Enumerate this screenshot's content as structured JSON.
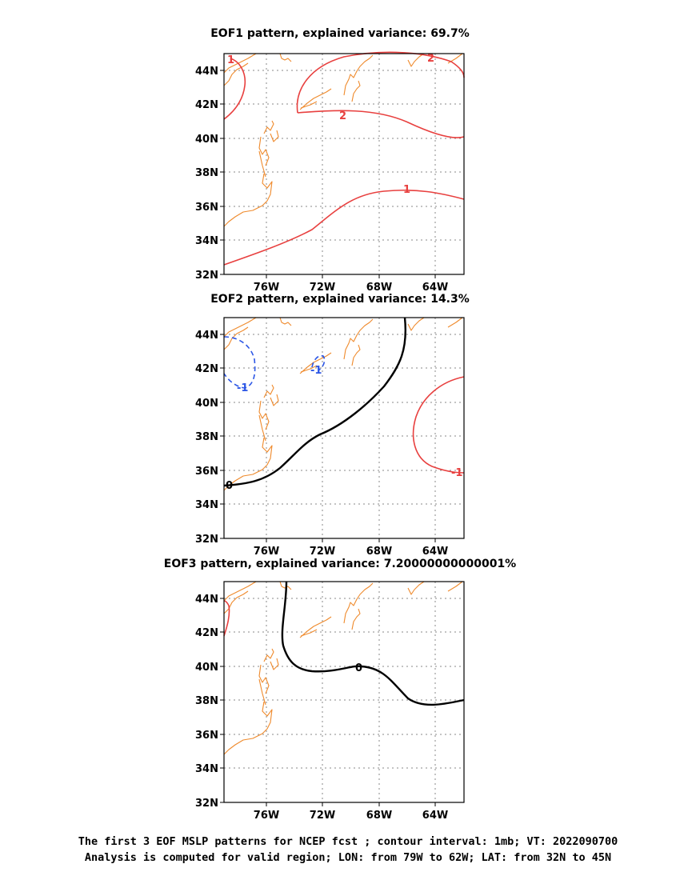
{
  "panels": [
    {
      "title": "EOF1 pattern, explained variance: 69.7%"
    },
    {
      "title": "EOF2 pattern, explained variance: 14.3%"
    },
    {
      "title": "EOF3 pattern, explained variance: 7.20000000000001%"
    }
  ],
  "axes": {
    "lat_ticks": [
      "44N",
      "42N",
      "40N",
      "38N",
      "36N",
      "34N",
      "32N"
    ],
    "lon_ticks": [
      "76W",
      "72W",
      "68W",
      "64W"
    ]
  },
  "contour_labels": {
    "eof1": [
      "1",
      "2",
      "2",
      "1"
    ],
    "eof2": [
      "0",
      "-1",
      "-1",
      "-1"
    ],
    "eof3": [
      "0"
    ]
  },
  "colors": {
    "positive_contour": "#e8403f",
    "negative_contour": "#2d57e6",
    "zero_contour": "#000000",
    "coastline": "#ef8a2c",
    "grid": "#888888"
  },
  "caption": {
    "line1": "The first 3 EOF MSLP patterns for NCEP fcst ; contour interval: 1mb; VT: 2022090700",
    "line2": "Analysis is computed for valid region; LON: from 79W to 62W; LAT: from 32N to 45N"
  }
}
